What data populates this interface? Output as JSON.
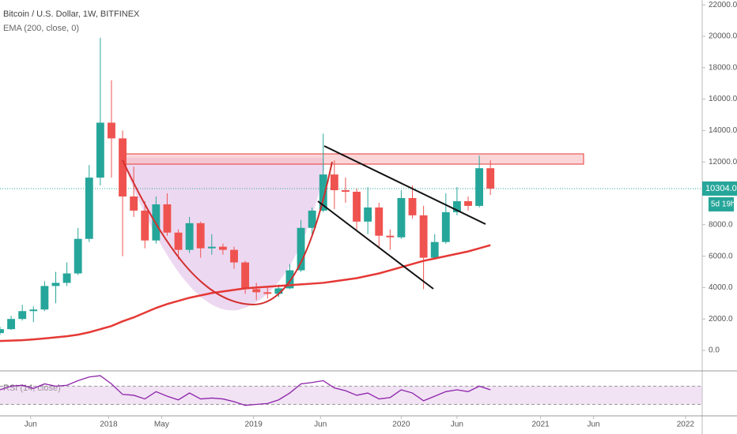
{
  "chart_data": {
    "type": "candlestick",
    "title": "Bitcoin / U.S. Dollar, 1W, BITFINEX",
    "up_color": "#26a69a",
    "down_color": "#ef5350",
    "x": [
      -39,
      -35,
      -31,
      -27,
      -23,
      -19,
      -15,
      -11,
      -7,
      -3,
      1,
      5,
      9,
      13,
      17,
      21,
      25,
      29,
      33,
      37,
      41,
      45,
      49,
      53,
      57,
      61,
      65,
      69,
      73,
      77,
      81,
      85,
      89,
      93,
      97,
      101,
      105,
      109,
      113,
      117,
      121,
      125,
      129,
      133,
      137
    ],
    "open": [
      1100,
      1350,
      2000,
      2500,
      2600,
      4100,
      4300,
      4900,
      7100,
      11000,
      14500,
      13500,
      9800,
      8900,
      7000,
      9300,
      7500,
      6400,
      8100,
      6500,
      6600,
      6400,
      5600,
      3900,
      3700,
      3600,
      3950,
      5100,
      7800,
      8900,
      11200,
      10200,
      10100,
      8200,
      9100,
      7300,
      7200,
      9700,
      8600,
      5900,
      6900,
      8800,
      9500,
      9200,
      11600
    ],
    "high": [
      1500,
      2200,
      2900,
      2800,
      4400,
      5000,
      5600,
      7800,
      11800,
      19900,
      17200,
      14000,
      11700,
      9500,
      9800,
      10000,
      7700,
      8500,
      8200,
      7400,
      6800,
      6600,
      5700,
      4300,
      4000,
      4200,
      5500,
      8300,
      9100,
      13800,
      12100,
      11000,
      10300,
      10400,
      9400,
      7700,
      10200,
      10500,
      9200,
      7400,
      10000,
      10400,
      9800,
      12400,
      12100
    ],
    "low": [
      1000,
      1300,
      1900,
      1800,
      2500,
      3000,
      4100,
      4800,
      6900,
      10500,
      11000,
      6000,
      8500,
      6500,
      6800,
      7300,
      5800,
      6200,
      5900,
      6100,
      6100,
      5200,
      3600,
      3200,
      3300,
      3400,
      3900,
      5000,
      7400,
      8800,
      9000,
      9400,
      7700,
      7400,
      6500,
      6400,
      7100,
      8400,
      3900,
      5800,
      6800,
      8600,
      8900,
      9100,
      9900
    ],
    "close": [
      1350,
      2000,
      2500,
      2600,
      4100,
      4300,
      4900,
      7100,
      11000,
      14500,
      13500,
      9800,
      8900,
      7000,
      9300,
      7500,
      6400,
      8100,
      6500,
      6600,
      6400,
      5600,
      3900,
      3700,
      3600,
      3950,
      5100,
      7800,
      8900,
      11200,
      10200,
      10100,
      8200,
      9100,
      7300,
      7200,
      9700,
      8600,
      5900,
      6900,
      8800,
      9500,
      9200,
      11600,
      10304
    ],
    "ema": {
      "name": "EMA (200, close, 0)",
      "color": "#e53935",
      "values": [
        600,
        620,
        650,
        700,
        760,
        830,
        900,
        1000,
        1150,
        1350,
        1550,
        1850,
        2100,
        2400,
        2700,
        2950,
        3150,
        3350,
        3500,
        3650,
        3750,
        3850,
        3950,
        4000,
        4050,
        4100,
        4150,
        4200,
        4250,
        4300,
        4400,
        4500,
        4600,
        4750,
        4900,
        5100,
        5300,
        5500,
        5700,
        5850,
        6000,
        6150,
        6300,
        6500,
        6700
      ]
    },
    "rsi": {
      "name": "RSI (14, close)",
      "color": "#8e24aa",
      "ylim": [
        5,
        100
      ],
      "bands": [
        70,
        30
      ],
      "values": [
        62,
        70,
        72,
        65,
        75,
        70,
        72,
        82,
        90,
        93,
        75,
        52,
        50,
        42,
        58,
        48,
        40,
        55,
        42,
        44,
        42,
        36,
        28,
        30,
        32,
        40,
        55,
        75,
        78,
        82,
        66,
        60,
        50,
        55,
        42,
        45,
        62,
        55,
        38,
        48,
        58,
        62,
        58,
        70,
        62
      ]
    },
    "last_price": {
      "value": 10304,
      "label": "10304.0"
    },
    "countdown": "5d 19h",
    "xlim": [
      -39,
      213
    ],
    "ylim": [
      -1306,
      22312
    ],
    "yticks": [
      {
        "value": 0,
        "label": "0.0"
      },
      {
        "value": 2000,
        "label": "2000.0"
      },
      {
        "value": 4000,
        "label": "4000.0"
      },
      {
        "value": 6000,
        "label": "6000.0"
      },
      {
        "value": 8000,
        "label": "8000.0"
      },
      {
        "value": 10000,
        "label": "10000.0"
      },
      {
        "value": 12000,
        "label": "12000.0"
      },
      {
        "value": 14000,
        "label": "14000.0"
      },
      {
        "value": 16000,
        "label": "16000.0"
      },
      {
        "value": 18000,
        "label": "18000.0"
      },
      {
        "value": 20000,
        "label": "20000.0"
      },
      {
        "value": 22000,
        "label": "22000.0"
      }
    ],
    "xticks": [
      {
        "value": -28,
        "label": "Jun"
      },
      {
        "value": 0,
        "label": "2018"
      },
      {
        "value": 19,
        "label": "May"
      },
      {
        "value": 52,
        "label": "2019"
      },
      {
        "value": 76,
        "label": "Jun"
      },
      {
        "value": 105,
        "label": "2020"
      },
      {
        "value": 125,
        "label": "Jun"
      },
      {
        "value": 155,
        "label": "2021"
      },
      {
        "value": 174,
        "label": "Jun"
      },
      {
        "value": 207,
        "label": "2022"
      }
    ]
  }
}
